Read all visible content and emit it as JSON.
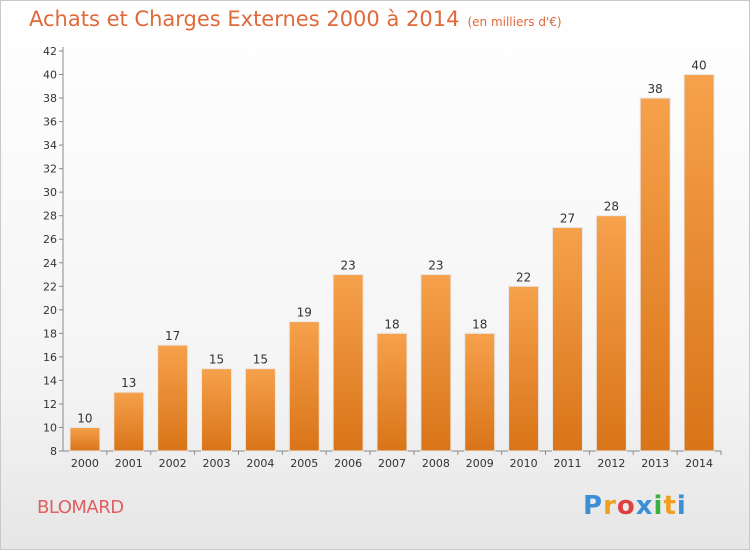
{
  "header": {
    "title": "Achats et Charges Externes 2000 à 2014",
    "unit": "(en milliers d'€)"
  },
  "footer": {
    "commune": "BLOMARD",
    "logo_letters": [
      "P",
      "r",
      "o",
      "x",
      "i",
      "t",
      "i"
    ],
    "logo_colors": [
      "#3a8fd6",
      "#f0a020",
      "#e04040",
      "#3a8fd6",
      "#3ab040",
      "#f0a020",
      "#3a8fd6"
    ]
  },
  "colors": {
    "bar_top": "#f6a14c",
    "bar_bottom": "#d97418",
    "title": "#e0693a",
    "commune": "#e06060"
  },
  "chart_data": {
    "type": "bar",
    "title": "Achats et Charges Externes 2000 à 2014",
    "subtitle": "(en milliers d'€)",
    "xlabel": "",
    "ylabel": "",
    "categories": [
      "2000",
      "2001",
      "2002",
      "2003",
      "2004",
      "2005",
      "2006",
      "2007",
      "2008",
      "2009",
      "2010",
      "2011",
      "2012",
      "2013",
      "2014"
    ],
    "values": [
      10,
      13,
      17,
      15,
      15,
      19,
      23,
      18,
      23,
      18,
      22,
      27,
      28,
      38,
      40
    ],
    "ylim": [
      8,
      42
    ],
    "yticks": [
      8,
      10,
      12,
      14,
      16,
      18,
      20,
      22,
      24,
      26,
      28,
      30,
      32,
      34,
      36,
      38,
      40,
      42
    ],
    "grid": false,
    "data_labels": true
  }
}
